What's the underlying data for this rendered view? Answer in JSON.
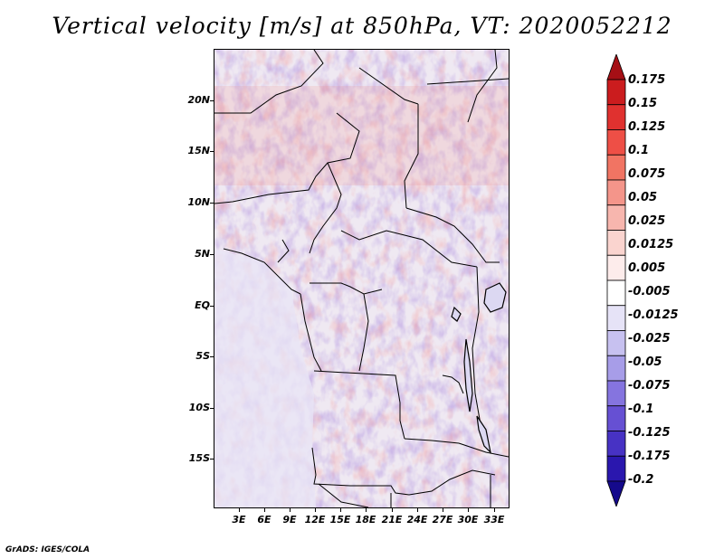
{
  "title": "Vertical velocity [m/s] at 850hPa, VT: 2020052212",
  "credit": "GrADS: IGES/COLA",
  "map": {
    "lat_labels": [
      "20N",
      "15N",
      "10N",
      "5N",
      "EQ",
      "5S",
      "10S",
      "15S"
    ],
    "lon_labels": [
      "3E",
      "6E",
      "9E",
      "12E",
      "15E",
      "18E",
      "21E",
      "24E",
      "27E",
      "30E",
      "33E"
    ]
  },
  "colorbar": {
    "levels": [
      "0.175",
      "0.15",
      "0.125",
      "0.1",
      "0.075",
      "0.05",
      "0.025",
      "0.0125",
      "0.005",
      "-0.005",
      "-0.0125",
      "-0.025",
      "-0.05",
      "-0.075",
      "-0.1",
      "-0.125",
      "-0.175",
      "-0.2"
    ],
    "colors": [
      "#a50f15",
      "#cb1c1e",
      "#e0312f",
      "#ee4f46",
      "#f17463",
      "#f4958a",
      "#f7b6ae",
      "#fad4cf",
      "#fdeceb",
      "#ffffff",
      "#e6e3f7",
      "#c7c1f0",
      "#a79de8",
      "#8574df",
      "#6650d3",
      "#4732c4",
      "#2a17ae",
      "#150a8c"
    ]
  }
}
